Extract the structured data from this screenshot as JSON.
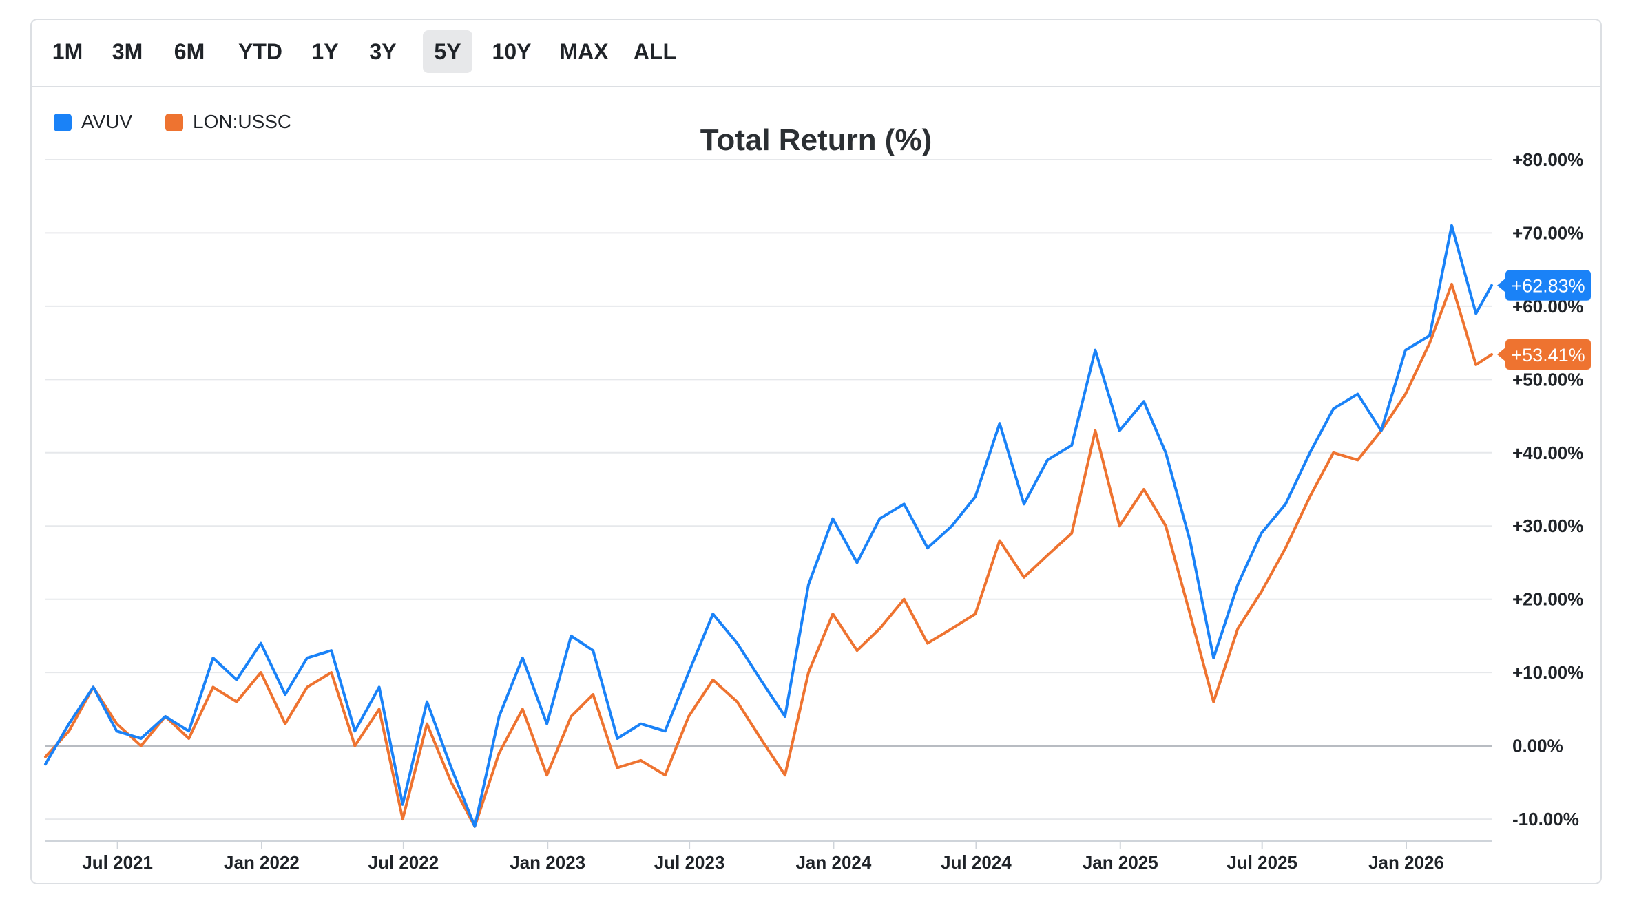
{
  "range_buttons": [
    "1M",
    "3M",
    "6M",
    "YTD",
    "1Y",
    "3Y",
    "5Y",
    "10Y",
    "MAX",
    "ALL"
  ],
  "active_range": "5Y",
  "chart_data": {
    "type": "line",
    "title": "Total Return (%)",
    "xlabel": "",
    "ylabel": "",
    "x_range": [
      "2021-03-31",
      "2026-04-20"
    ],
    "ylim": [
      -13,
      83
    ],
    "y_ticks": [
      -10,
      0,
      10,
      20,
      30,
      40,
      50,
      60,
      70,
      80
    ],
    "y_tick_labels": [
      "-10.00%",
      "0.00%",
      "+10.00%",
      "+20.00%",
      "+30.00%",
      "+40.00%",
      "+50.00%",
      "+60.00%",
      "+70.00%",
      "+80.00%"
    ],
    "x_tick_labels": [
      "Jul 2021",
      "Jan 2022",
      "Jul 2022",
      "Jan 2023",
      "Jul 2023",
      "Jan 2024",
      "Jul 2024",
      "Jan 2025",
      "Jul 2025",
      "Jan 2026"
    ],
    "x_tick_dates": [
      "2021-07-01",
      "2022-01-01",
      "2022-07-01",
      "2023-01-01",
      "2023-07-01",
      "2024-01-01",
      "2024-07-01",
      "2025-01-01",
      "2025-07-01",
      "2026-01-01"
    ],
    "grid": true,
    "legend_position": "top-left",
    "series": [
      {
        "name": "AVUV",
        "color": "#1a82f7",
        "last_label": "+62.83%",
        "dates": [
          "2021-03-31",
          "2021-04-30",
          "2021-05-31",
          "2021-06-30",
          "2021-07-31",
          "2021-08-31",
          "2021-09-30",
          "2021-10-31",
          "2021-11-30",
          "2021-12-31",
          "2022-01-31",
          "2022-02-28",
          "2022-03-31",
          "2022-04-30",
          "2022-05-31",
          "2022-06-30",
          "2022-07-31",
          "2022-08-31",
          "2022-09-30",
          "2022-10-31",
          "2022-11-30",
          "2022-12-31",
          "2023-01-31",
          "2023-02-28",
          "2023-03-31",
          "2023-04-30",
          "2023-05-31",
          "2023-06-30",
          "2023-07-31",
          "2023-08-31",
          "2023-09-30",
          "2023-10-31",
          "2023-11-30",
          "2023-12-31",
          "2024-01-31",
          "2024-02-29",
          "2024-03-31",
          "2024-04-30",
          "2024-05-31",
          "2024-06-30",
          "2024-07-31",
          "2024-08-31",
          "2024-09-30",
          "2024-10-31",
          "2024-11-30",
          "2024-12-31",
          "2025-01-31",
          "2025-02-28",
          "2025-03-31",
          "2025-04-30",
          "2025-05-31",
          "2025-06-30",
          "2025-07-31",
          "2025-08-31",
          "2025-09-30",
          "2025-10-31",
          "2025-11-30",
          "2025-12-31",
          "2026-01-31",
          "2026-02-28",
          "2026-03-31",
          "2026-04-20"
        ],
        "values": [
          -2.5,
          3,
          8,
          2,
          1,
          4,
          2,
          12,
          9,
          14,
          7,
          12,
          13,
          2,
          8,
          -8,
          6,
          -3,
          -11,
          4,
          12,
          3,
          15,
          13,
          1,
          3,
          2,
          10,
          18,
          14,
          9,
          4,
          22,
          31,
          25,
          31,
          33,
          27,
          30,
          34,
          44,
          33,
          39,
          41,
          54,
          43,
          47,
          40,
          28,
          12,
          22,
          29,
          33,
          40,
          46,
          48,
          43,
          54,
          56,
          71,
          59,
          62.83
        ]
      },
      {
        "name": "LON:USSC",
        "color": "#ee7330",
        "last_label": "+53.41%",
        "dates": [
          "2021-03-31",
          "2021-04-30",
          "2021-05-31",
          "2021-06-30",
          "2021-07-31",
          "2021-08-31",
          "2021-09-30",
          "2021-10-31",
          "2021-11-30",
          "2021-12-31",
          "2022-01-31",
          "2022-02-28",
          "2022-03-31",
          "2022-04-30",
          "2022-05-31",
          "2022-06-30",
          "2022-07-31",
          "2022-08-31",
          "2022-09-30",
          "2022-10-31",
          "2022-11-30",
          "2022-12-31",
          "2023-01-31",
          "2023-02-28",
          "2023-03-31",
          "2023-04-30",
          "2023-05-31",
          "2023-06-30",
          "2023-07-31",
          "2023-08-31",
          "2023-09-30",
          "2023-10-31",
          "2023-11-30",
          "2023-12-31",
          "2024-01-31",
          "2024-02-29",
          "2024-03-31",
          "2024-04-30",
          "2024-05-31",
          "2024-06-30",
          "2024-07-31",
          "2024-08-31",
          "2024-09-30",
          "2024-10-31",
          "2024-11-30",
          "2024-12-31",
          "2025-01-31",
          "2025-02-28",
          "2025-03-31",
          "2025-04-30",
          "2025-05-31",
          "2025-06-30",
          "2025-07-31",
          "2025-08-31",
          "2025-09-30",
          "2025-10-31",
          "2025-11-30",
          "2025-12-31",
          "2026-01-31",
          "2026-02-28",
          "2026-03-31",
          "2026-04-20"
        ],
        "values": [
          -1.5,
          2,
          8,
          3,
          0,
          4,
          1,
          8,
          6,
          10,
          3,
          8,
          10,
          0,
          5,
          -10,
          3,
          -5,
          -11,
          -1,
          5,
          -4,
          4,
          7,
          -3,
          -2,
          -4,
          4,
          9,
          6,
          1,
          -4,
          10,
          18,
          13,
          16,
          20,
          14,
          16,
          18,
          28,
          23,
          26,
          29,
          43,
          30,
          35,
          30,
          18,
          6,
          16,
          21,
          27,
          34,
          40,
          39,
          43,
          48,
          55,
          63,
          52,
          53.41
        ]
      }
    ]
  }
}
